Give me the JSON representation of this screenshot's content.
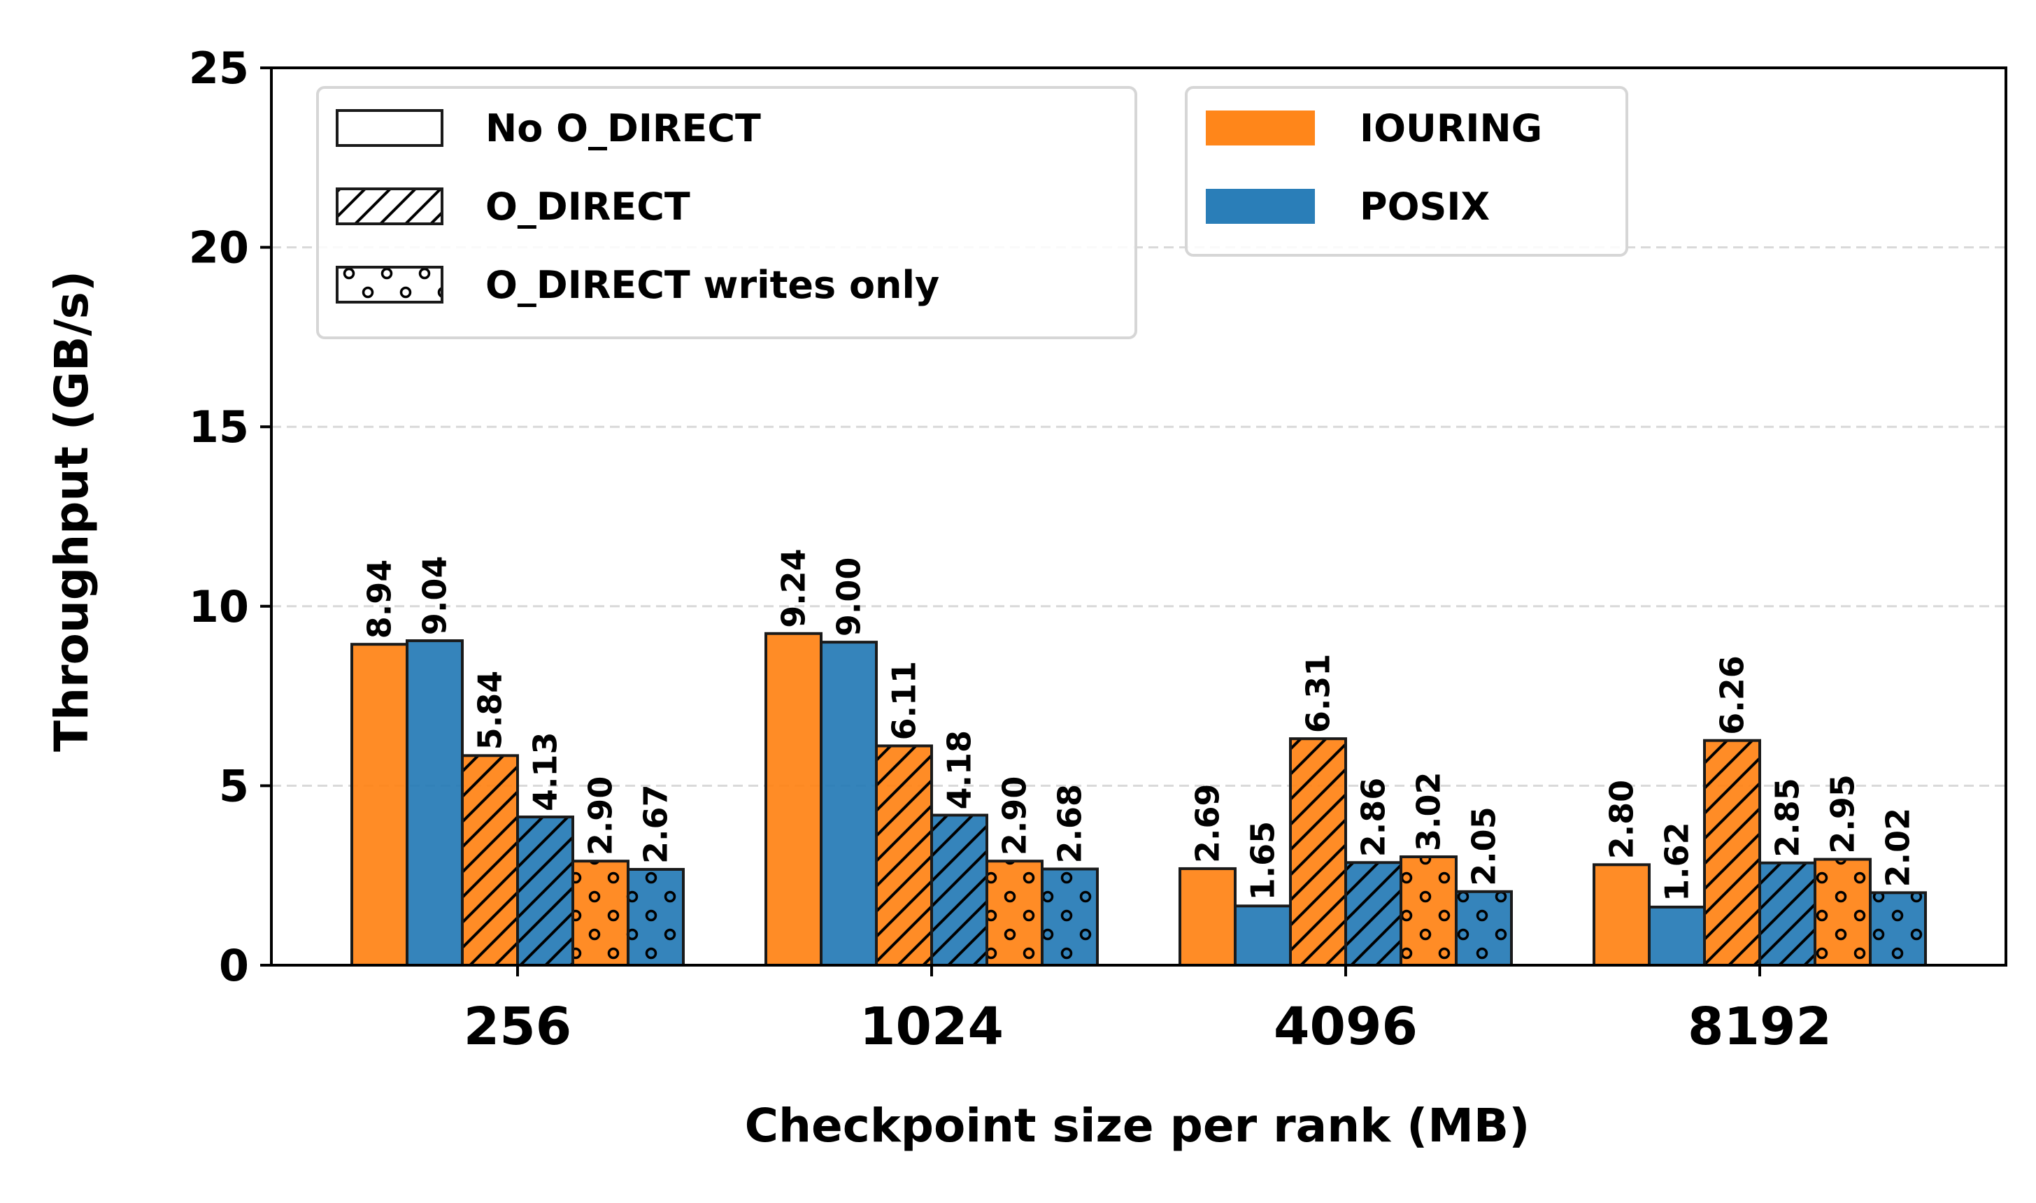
{
  "chart_data": {
    "type": "bar",
    "xlabel": "Checkpoint size per rank (MB)",
    "ylabel": "Throughput (GB/s)",
    "ylim": [
      0,
      25
    ],
    "yticks": [
      "0",
      "5",
      "10",
      "15",
      "20",
      "25"
    ],
    "categories": [
      "256",
      "1024",
      "4096",
      "8192"
    ],
    "grid": "horizontal dashed",
    "series": [
      {
        "name": "IOURING",
        "mode": "No O_DIRECT",
        "color": "#ff7f0e",
        "hatch": "none",
        "values": [
          8.94,
          9.24,
          2.69,
          2.8
        ],
        "labels": [
          "8.94",
          "9.24",
          "2.69",
          "2.80"
        ]
      },
      {
        "name": "POSIX",
        "mode": "No O_DIRECT",
        "color": "#1f77b4",
        "hatch": "none",
        "values": [
          9.04,
          9.0,
          1.65,
          1.62
        ],
        "labels": [
          "9.04",
          "9.00",
          "1.65",
          "1.62"
        ]
      },
      {
        "name": "IOURING",
        "mode": "O_DIRECT",
        "color": "#ff7f0e",
        "hatch": "diagonal",
        "values": [
          5.84,
          6.11,
          6.31,
          6.26
        ],
        "labels": [
          "5.84",
          "6.11",
          "6.31",
          "6.26"
        ]
      },
      {
        "name": "POSIX",
        "mode": "O_DIRECT",
        "color": "#1f77b4",
        "hatch": "diagonal",
        "values": [
          4.13,
          4.18,
          2.86,
          2.85
        ],
        "labels": [
          "4.13",
          "4.18",
          "2.86",
          "2.85"
        ]
      },
      {
        "name": "IOURING",
        "mode": "O_DIRECT writes only",
        "color": "#ff7f0e",
        "hatch": "dots",
        "values": [
          2.9,
          2.9,
          3.02,
          2.95
        ],
        "labels": [
          "2.90",
          "2.90",
          "3.02",
          "2.95"
        ]
      },
      {
        "name": "POSIX",
        "mode": "O_DIRECT writes only",
        "color": "#1f77b4",
        "hatch": "dots",
        "values": [
          2.67,
          2.68,
          2.05,
          2.02
        ],
        "labels": [
          "2.67",
          "2.68",
          "2.05",
          "2.02"
        ]
      }
    ],
    "legend_modes": {
      "placement": "top-left",
      "items": [
        {
          "label": "No O_DIRECT",
          "hatch": "none"
        },
        {
          "label": "O_DIRECT",
          "hatch": "diagonal"
        },
        {
          "label": "O_DIRECT writes only",
          "hatch": "dots"
        }
      ]
    },
    "legend_impl": {
      "placement": "top-center",
      "items": [
        {
          "label": "IOURING",
          "color": "#ff7f0e"
        },
        {
          "label": "POSIX",
          "color": "#1f77b4"
        }
      ]
    }
  }
}
